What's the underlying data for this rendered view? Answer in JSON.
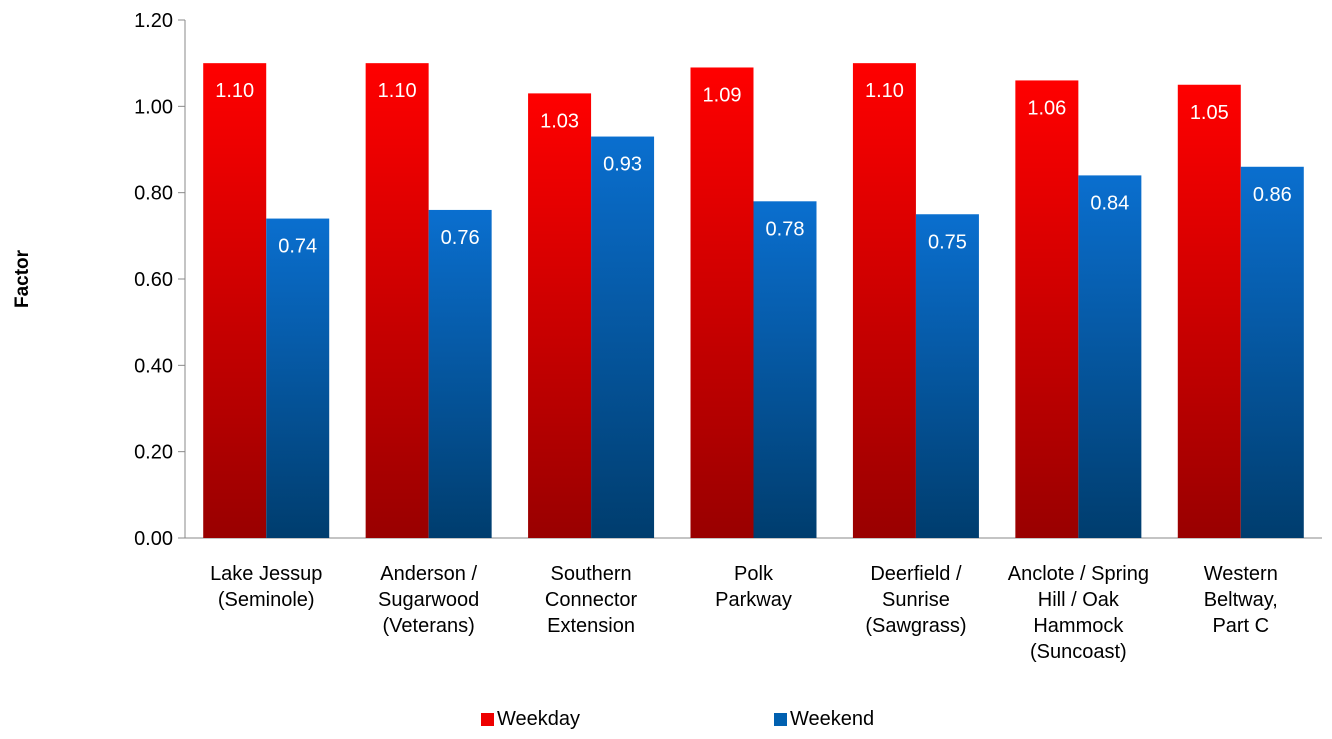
{
  "chart_data": {
    "type": "bar",
    "title": "",
    "xlabel": "",
    "ylabel": "Factor",
    "ylim": [
      0,
      1.2
    ],
    "yticks": [
      "0.00",
      "0.20",
      "0.40",
      "0.60",
      "0.80",
      "1.00",
      "1.20"
    ],
    "categories": [
      [
        "Lake Jessup",
        "(Seminole)"
      ],
      [
        "Anderson /",
        "Sugarwood",
        "(Veterans)"
      ],
      [
        "Southern",
        "Connector",
        "Extension"
      ],
      [
        "Polk",
        "Parkway"
      ],
      [
        "Deerfield /",
        "Sunrise",
        "(Sawgrass)"
      ],
      [
        "Anclote / Spring",
        "Hill / Oak",
        "Hammock",
        "(Suncoast)"
      ],
      [
        "Western",
        "Beltway,",
        "Part C"
      ]
    ],
    "series": [
      {
        "name": "Weekday",
        "color": "#ff0000",
        "color_dark": "#990000",
        "values": [
          1.1,
          1.1,
          1.03,
          1.09,
          1.1,
          1.06,
          1.05
        ],
        "labels": [
          "1.10",
          "1.10",
          "1.03",
          "1.09",
          "1.10",
          "1.06",
          "1.05"
        ]
      },
      {
        "name": "Weekend",
        "color": "#0a6fcf",
        "color_dark": "#003d6e",
        "values": [
          0.74,
          0.76,
          0.93,
          0.78,
          0.75,
          0.84,
          0.86
        ],
        "labels": [
          "0.74",
          "0.76",
          "0.93",
          "0.78",
          "0.75",
          "0.84",
          "0.86"
        ]
      }
    ],
    "grid": false,
    "legend_position": "bottom"
  }
}
